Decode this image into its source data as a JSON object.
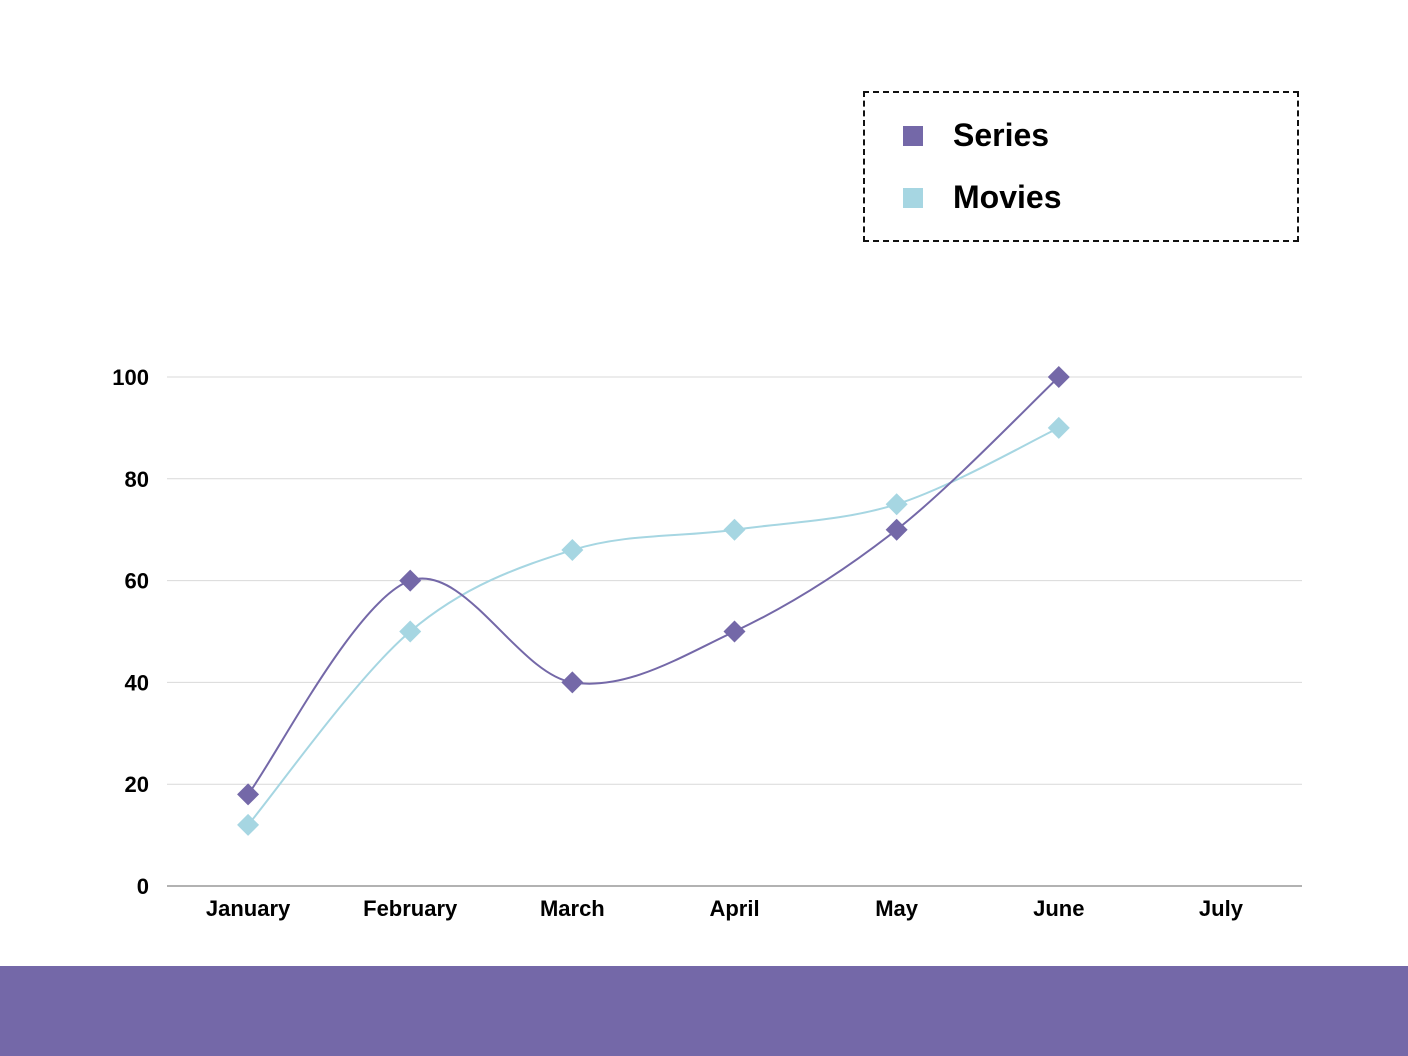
{
  "colors": {
    "series": "#7468a8",
    "movies": "#a6d6e2",
    "footer": "#7468a8",
    "grid": "#d9d9d9",
    "axis": "#999999"
  },
  "legend": {
    "items": [
      {
        "label": "Series",
        "color": "#7468a8"
      },
      {
        "label": "Movies",
        "color": "#a6d6e2"
      }
    ],
    "placement": "top-right",
    "border": "dashed"
  },
  "chart_data": {
    "type": "line",
    "smooth": true,
    "marker": "diamond",
    "categories": [
      "January",
      "February",
      "March",
      "April",
      "May",
      "June",
      "July"
    ],
    "series": [
      {
        "name": "Series",
        "color": "#7468a8",
        "values": [
          18,
          60,
          40,
          50,
          70,
          100,
          null
        ]
      },
      {
        "name": "Movies",
        "color": "#a6d6e2",
        "values": [
          12,
          50,
          66,
          70,
          75,
          90,
          null
        ]
      }
    ],
    "ylim": [
      0,
      100
    ],
    "yticks": [
      0,
      20,
      40,
      60,
      80,
      100
    ],
    "grid": true,
    "title": "",
    "xlabel": "",
    "ylabel": ""
  }
}
